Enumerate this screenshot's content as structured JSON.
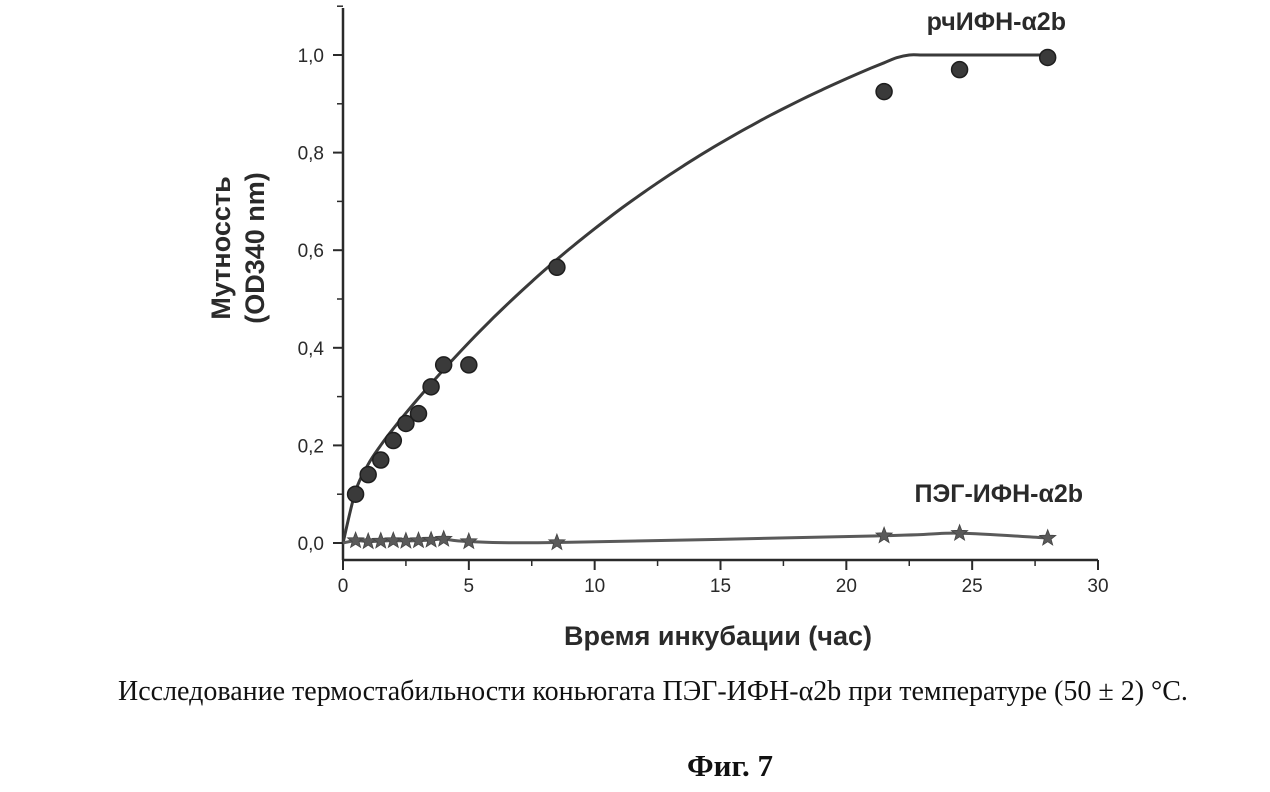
{
  "chart_data": {
    "type": "line",
    "xlabel": "Время инкубации (час)",
    "ylabel_lines": [
      "Мутноссть",
      "(OD340 nm)"
    ],
    "xlim": [
      0,
      30
    ],
    "ylim": [
      0,
      1.1
    ],
    "x_ticks": [
      {
        "value": 0,
        "label": "0"
      },
      {
        "value": 5,
        "label": "5"
      },
      {
        "value": 10,
        "label": "10"
      },
      {
        "value": 15,
        "label": "15"
      },
      {
        "value": 20,
        "label": "20"
      },
      {
        "value": 25,
        "label": "25"
      },
      {
        "value": 30,
        "label": "30"
      }
    ],
    "y_ticks": [
      {
        "value": 0.0,
        "label": "0,0"
      },
      {
        "value": 0.2,
        "label": "0,2"
      },
      {
        "value": 0.4,
        "label": "0,4"
      },
      {
        "value": 0.6,
        "label": "0,6"
      },
      {
        "value": 0.8,
        "label": "0,8"
      },
      {
        "value": 1.0,
        "label": "1,0"
      }
    ],
    "grid": false,
    "series": [
      {
        "name": "рчИФН-α2b",
        "marker": "circle",
        "color": "#3a3a3a",
        "x": [
          0.5,
          1.0,
          1.5,
          2.0,
          2.5,
          3.0,
          3.5,
          4.0,
          5.0,
          8.5,
          21.5,
          24.5,
          28.0
        ],
        "y": [
          0.1,
          0.14,
          0.17,
          0.21,
          0.245,
          0.265,
          0.32,
          0.365,
          0.365,
          0.565,
          0.925,
          0.97,
          0.995
        ]
      },
      {
        "name": "ПЭГ-ИФН-α2b",
        "marker": "star",
        "color": "#5a5a5a",
        "x": [
          0.5,
          1.0,
          1.5,
          2.0,
          2.5,
          3.0,
          3.5,
          4.0,
          5.0,
          8.5,
          21.5,
          24.5,
          28.0
        ],
        "y": [
          0.005,
          0.003,
          0.004,
          0.005,
          0.004,
          0.005,
          0.006,
          0.008,
          0.003,
          0.001,
          0.015,
          0.02,
          0.01
        ]
      }
    ]
  },
  "caption": "Исследование термостабильности коньюгата ПЭГ-ИФН-α2b при температуре (50 ± 2) °С.",
  "figure_label": "Фиг. 7"
}
